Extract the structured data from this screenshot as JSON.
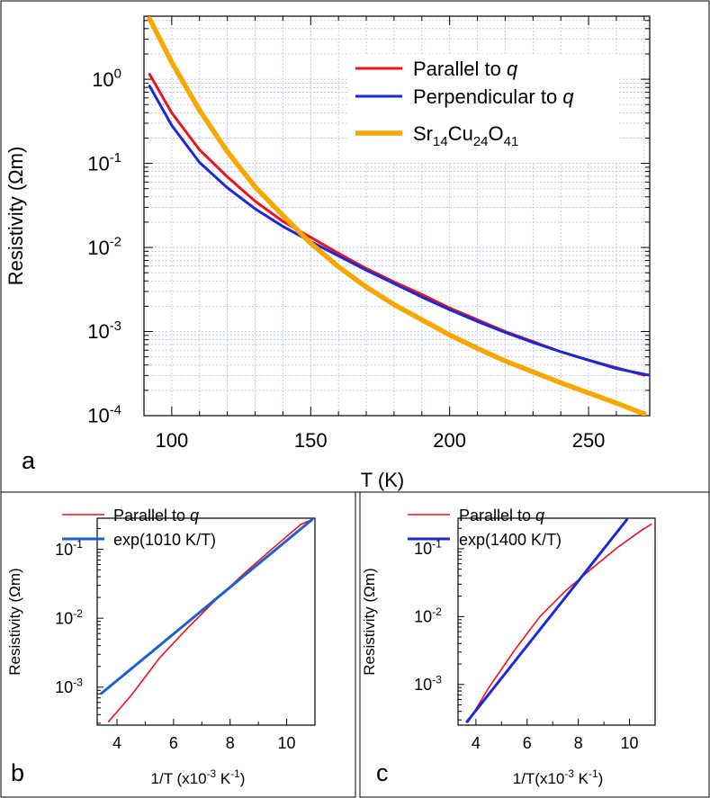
{
  "chart_data": [
    {
      "panel": "a",
      "type": "line",
      "xlabel": "T (K)",
      "ylabel": "Resistivity (Ωm)",
      "xlim": [
        90,
        272
      ],
      "ylim_log10": [
        -4,
        0.75
      ],
      "xticks": [
        {
          "value": 100,
          "label": "100"
        },
        {
          "value": 150,
          "label": "150"
        },
        {
          "value": 200,
          "label": "200"
        },
        {
          "value": 250,
          "label": "250"
        }
      ],
      "yticks": [
        {
          "exp": 0,
          "base": "10",
          "sup": "0"
        },
        {
          "exp": -1,
          "base": "10",
          "sup": "-1"
        },
        {
          "exp": -2,
          "base": "10",
          "sup": "-2"
        },
        {
          "exp": -3,
          "base": "10",
          "sup": "-3"
        },
        {
          "exp": -4,
          "base": "10",
          "sup": "-4"
        }
      ],
      "grid": true,
      "legend_position": "top-right",
      "series": [
        {
          "name": "Parallel to q",
          "label_main": "Parallel to ",
          "label_italic": "q",
          "color": "#e8141e",
          "x": [
            92,
            100,
            110,
            120,
            130,
            140,
            150,
            160,
            170,
            180,
            190,
            200,
            210,
            220,
            230,
            240,
            250,
            260,
            270
          ],
          "log10_y": [
            0.06,
            -0.4,
            -0.84,
            -1.16,
            -1.45,
            -1.69,
            -1.88,
            -2.07,
            -2.25,
            -2.41,
            -2.56,
            -2.72,
            -2.86,
            -3.0,
            -3.12,
            -3.24,
            -3.34,
            -3.43,
            -3.52
          ]
        },
        {
          "name": "Perpendicular to q",
          "label_main": "Perpendicular to ",
          "label_italic": "q",
          "color": "#1a28d8",
          "x": [
            92,
            100,
            110,
            120,
            130,
            140,
            150,
            160,
            170,
            180,
            190,
            200,
            210,
            220,
            230,
            240,
            250,
            260,
            272
          ],
          "log10_y": [
            -0.08,
            -0.55,
            -0.99,
            -1.29,
            -1.54,
            -1.75,
            -1.93,
            -2.1,
            -2.27,
            -2.43,
            -2.59,
            -2.74,
            -2.88,
            -3.01,
            -3.13,
            -3.24,
            -3.34,
            -3.44,
            -3.52
          ]
        },
        {
          "name": "Sr14Cu24O41",
          "label_parts": [
            "Sr",
            "14",
            "Cu",
            "24",
            "O",
            "41"
          ],
          "color": "#f6a800",
          "x": [
            92,
            100,
            110,
            120,
            130,
            140,
            150,
            160,
            170,
            180,
            190,
            200,
            210,
            220,
            230,
            240,
            250,
            260,
            270
          ],
          "log10_y": [
            0.72,
            0.2,
            -0.37,
            -0.86,
            -1.28,
            -1.62,
            -1.95,
            -2.23,
            -2.47,
            -2.68,
            -2.86,
            -3.04,
            -3.2,
            -3.35,
            -3.48,
            -3.61,
            -3.73,
            -3.85,
            -3.98
          ]
        }
      ]
    },
    {
      "panel": "b",
      "type": "line",
      "xlabel": "1/T (x10",
      "xlabel_sup": "-3",
      "xlabel_tail": "  K",
      "xlabel_tail_sup": "-1",
      "xlabel_close": ")",
      "ylabel": "Resistivity (Ωm)",
      "xlim": [
        3.3,
        11.0
      ],
      "ylim_log10": [
        -3.55,
        -0.55
      ],
      "xticks": [
        {
          "value": 4,
          "label": "4"
        },
        {
          "value": 6,
          "label": "6"
        },
        {
          "value": 8,
          "label": "8"
        },
        {
          "value": 10,
          "label": "10"
        }
      ],
      "yticks": [
        {
          "exp": -1,
          "base": "10",
          "sup": "-1"
        },
        {
          "exp": -2,
          "base": "10",
          "sup": "-2"
        },
        {
          "exp": -3,
          "base": "10",
          "sup": "-3"
        }
      ],
      "legend_position": "top-left",
      "series": [
        {
          "name": "Parallel to q",
          "label_main": "Parallel to ",
          "label_italic": "q",
          "color": "#e8141e",
          "x": [
            3.7,
            4.5,
            5.5,
            6.5,
            7.5,
            8.5,
            9.5,
            10.5,
            10.85
          ],
          "log10_y": [
            -3.5,
            -3.12,
            -2.58,
            -2.14,
            -1.73,
            -1.35,
            -0.99,
            -0.64,
            -0.58
          ]
        },
        {
          "name": "exp(1010 K/T)",
          "label_main": "exp(1010 K/T)",
          "color": "#1e5fd0",
          "x": [
            3.45,
            10.9
          ],
          "log10_y": [
            -3.09,
            -0.57
          ]
        }
      ]
    },
    {
      "panel": "c",
      "type": "line",
      "xlabel": "1/T(x10",
      "xlabel_sup": "-3",
      "xlabel_tail": "  K",
      "xlabel_tail_sup": "-1",
      "xlabel_close": ")",
      "ylabel": "Resistivity (Ωm)",
      "xlim": [
        3.3,
        11.0
      ],
      "ylim_log10": [
        -3.6,
        -0.55
      ],
      "xticks": [
        {
          "value": 4,
          "label": "4"
        },
        {
          "value": 6,
          "label": "6"
        },
        {
          "value": 8,
          "label": "8"
        },
        {
          "value": 10,
          "label": "10"
        }
      ],
      "yticks": [
        {
          "exp": -1,
          "base": "10",
          "sup": "-1"
        },
        {
          "exp": -2,
          "base": "10",
          "sup": "-2"
        },
        {
          "exp": -3,
          "base": "10",
          "sup": "-3"
        }
      ],
      "legend_position": "top-left",
      "series": [
        {
          "name": "Parallel to q",
          "label_main": "Parallel to ",
          "label_italic": "q",
          "color": "#e8141e",
          "x": [
            3.7,
            4.5,
            5.5,
            6.5,
            7.5,
            8.5,
            9.5,
            10.5,
            10.85
          ],
          "log10_y": [
            -3.55,
            -3.05,
            -2.5,
            -2.0,
            -1.62,
            -1.3,
            -0.99,
            -0.72,
            -0.64
          ]
        },
        {
          "name": "exp(1400 K/T)",
          "label_main": "exp(1400 K/T)",
          "color": "#1a28d8",
          "x": [
            3.65,
            9.9
          ],
          "log10_y": [
            -3.55,
            -0.57
          ]
        }
      ]
    }
  ],
  "panel_labels": {
    "a": "a",
    "b": "b",
    "c": "c"
  }
}
